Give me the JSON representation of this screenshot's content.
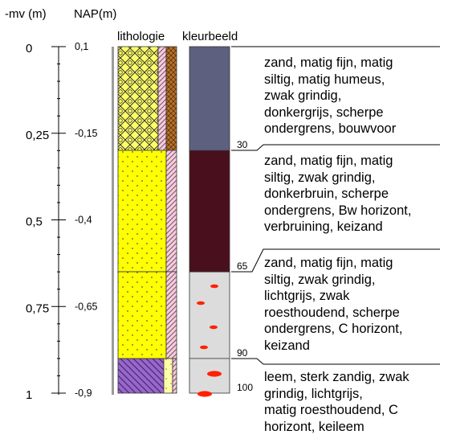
{
  "headers": {
    "mv": "-mv (m)",
    "nap": "NAP(m)",
    "lithology": "lithologie",
    "colour": "kleurbeeld"
  },
  "depth_ticks": [
    {
      "mv": "0",
      "nap": "0,1"
    },
    {
      "mv": "0,25",
      "nap": "-0,15"
    },
    {
      "mv": "0,5",
      "nap": "-0,4"
    },
    {
      "mv": "0,75",
      "nap": "-0,65"
    },
    {
      "mv": "1",
      "nap": "-0,9"
    }
  ],
  "layers": [
    {
      "top_cm": 0,
      "bottom_cm": 30,
      "bottom_label": "30",
      "colour": "#5e607f",
      "lithology": [
        "zand",
        "grind",
        "humus"
      ],
      "description": "zand, matig fijn, matig\nsiltig, matig humeus,\nzwak grindig,\ndonkergrijs, scherpe\nondergrens, bouwvoor"
    },
    {
      "top_cm": 30,
      "bottom_cm": 65,
      "bottom_label": "65",
      "colour": "#4a0f1d",
      "lithology": [
        "zand",
        "grind"
      ],
      "description": "zand, matig fijn, matig\nsiltig, zwak grindig,\ndonkerbruin, scherpe\nondergrens, Bw horizont,\nverbruining, keizand"
    },
    {
      "top_cm": 65,
      "bottom_cm": 90,
      "bottom_label": "90",
      "colour": "#dcdcdc",
      "lithology": [
        "zand",
        "grind"
      ],
      "description": "zand, matig fijn, matig\nsiltig, zwak grindig,\nlichtgrijs, zwak\nroesthoudend, scherpe\nondergrens, C horizont,\nkeizand"
    },
    {
      "top_cm": 90,
      "bottom_cm": 100,
      "bottom_label": "100",
      "colour": "#dcdcdc",
      "lithology": [
        "leem",
        "zand",
        "grind"
      ],
      "description": "leem, sterk zandig, zwak\ngrindig, lichtgrijs,\nmatig roesthoudend, C\nhorizont, keileem"
    }
  ],
  "colours": {
    "zand": "#ffff00",
    "leem": "#9966cc",
    "humus": "#b8742a",
    "roest": "#ff2200"
  }
}
